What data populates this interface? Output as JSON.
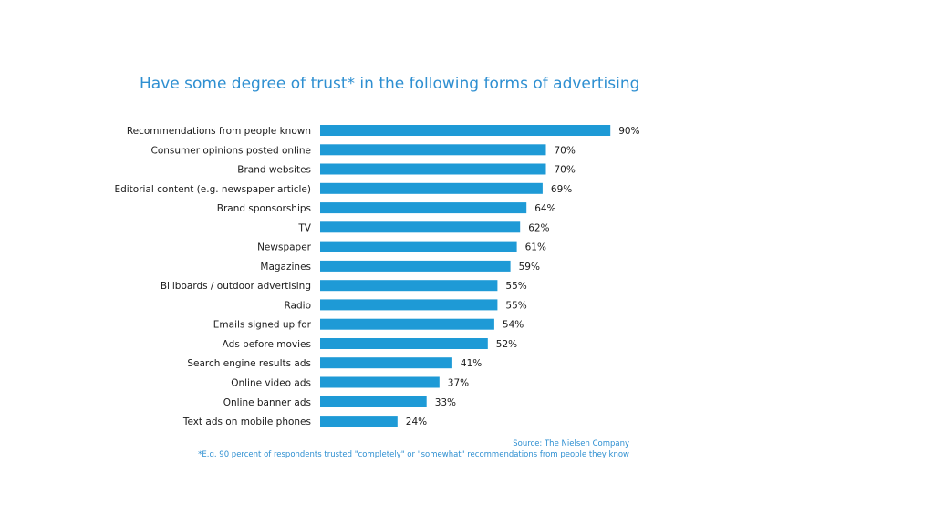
{
  "colors": {
    "bar": "#1e9ad6",
    "title": "#2e8fd1",
    "text": "#1a1a1a",
    "note": "#2e8fd1"
  },
  "source": "Source: The Nielsen Company",
  "footnote": "*E.g. 90 percent of respondents trusted \"completely\" or \"somewhat\" recommendations from people they know",
  "chart_data": {
    "type": "bar",
    "orientation": "horizontal",
    "title": "Have some degree of trust* in the following forms of advertising",
    "xlabel": "",
    "ylabel": "",
    "xlim": [
      0,
      100
    ],
    "grid": false,
    "legend": "none",
    "categories": [
      "Recommendations from people known",
      "Consumer opinions posted online",
      "Brand websites",
      "Editorial content (e.g. newspaper article)",
      "Brand sponsorships",
      "TV",
      "Newspaper",
      "Magazines",
      "Billboards / outdoor advertising",
      "Radio",
      "Emails signed up for",
      "Ads before movies",
      "Search engine results ads",
      "Online video ads",
      "Online banner ads",
      "Text ads on mobile phones"
    ],
    "values": [
      90,
      70,
      70,
      69,
      64,
      62,
      61,
      59,
      55,
      55,
      54,
      52,
      41,
      37,
      33,
      24
    ],
    "value_labels": [
      "90%",
      "70%",
      "70%",
      "69%",
      "64%",
      "62%",
      "61%",
      "59%",
      "55%",
      "55%",
      "54%",
      "52%",
      "41%",
      "37%",
      "33%",
      "24%"
    ]
  }
}
